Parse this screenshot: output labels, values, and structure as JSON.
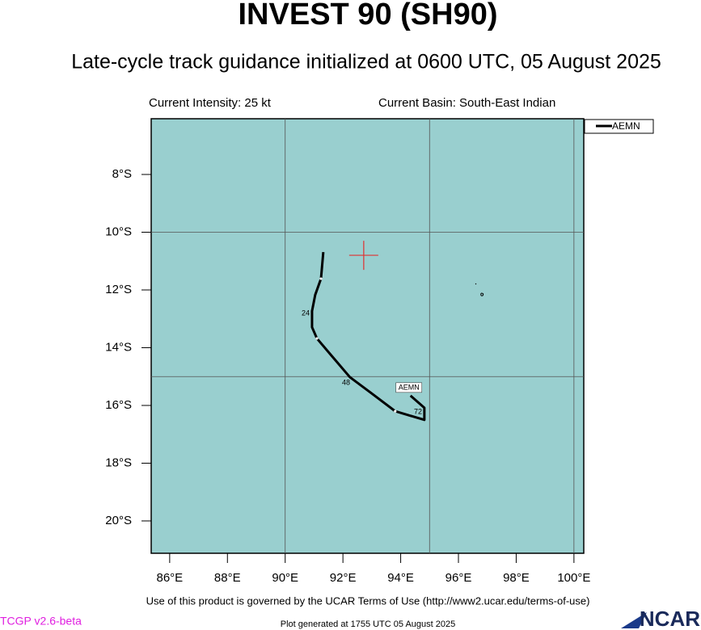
{
  "header": {
    "title": "INVEST 90 (SH90)",
    "subtitle": "Late-cycle track guidance initialized at 0600 UTC, 05 August 2025",
    "intensity": "Current Intensity: 25 kt",
    "basin": "Current Basin: South-East Indian"
  },
  "map": {
    "xlim": [
      85.36,
      100.34
    ],
    "ylim": [
      -21.12,
      -6.07
    ],
    "xticks": [
      {
        "value": 86,
        "label": "86°E"
      },
      {
        "value": 88,
        "label": "88°E"
      },
      {
        "value": 90,
        "label": "90°E"
      },
      {
        "value": 92,
        "label": "92°E"
      },
      {
        "value": 94,
        "label": "94°E"
      },
      {
        "value": 96,
        "label": "96°E"
      },
      {
        "value": 98,
        "label": "98°E"
      },
      {
        "value": 100,
        "label": "100°E"
      }
    ],
    "yticks": [
      {
        "value": -8,
        "label": "8°S"
      },
      {
        "value": -10,
        "label": "10°S"
      },
      {
        "value": -12,
        "label": "12°S"
      },
      {
        "value": -14,
        "label": "14°S"
      },
      {
        "value": -16,
        "label": "16°S"
      },
      {
        "value": -18,
        "label": "18°S"
      },
      {
        "value": -20,
        "label": "20°S"
      }
    ],
    "grid_x": [
      90,
      95,
      100
    ],
    "grid_y": [
      -10,
      -15
    ],
    "current_position": {
      "lon": 92.72,
      "lat": -10.8
    },
    "tracks": [
      {
        "name": "AEMN",
        "color": "#000000",
        "lon": [
          91.32,
          91.24,
          91.04,
          90.93,
          90.93,
          91.1,
          91.6,
          92.24,
          92.99,
          93.81,
          94.82,
          94.82,
          94.34
        ],
        "lat": [
          -10.69,
          -11.61,
          -12.17,
          -12.73,
          -13.29,
          -13.68,
          -14.27,
          -15.02,
          -15.58,
          -16.2,
          -16.5,
          -16.08,
          -15.66
        ],
        "hour_labels": [
          "24",
          "48",
          "72"
        ]
      }
    ]
  },
  "footer": {
    "terms": "Use of this product is governed by the UCAR Terms of Use (http://www2.ucar.edu/terms-of-use)",
    "version": "TCGP v2.6-beta",
    "generated": "Plot generated at 1755 UTC   05 August 2025",
    "logo": "NCAR"
  }
}
